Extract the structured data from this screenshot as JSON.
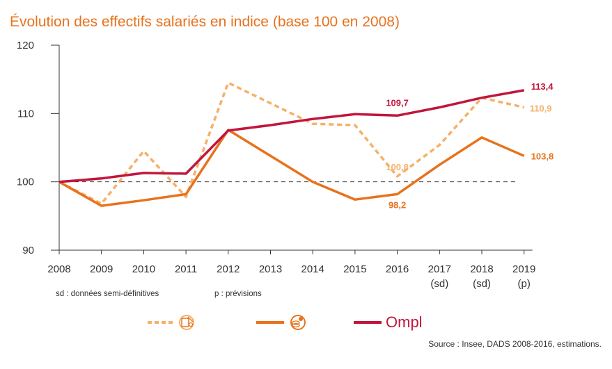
{
  "chart_data": {
    "type": "line",
    "title": "Évolution des effectifs salariés en indice (base 100 en 2008)",
    "categories": [
      "2008",
      "2009",
      "2010",
      "2011",
      "2012",
      "2013",
      "2014",
      "2015",
      "2016",
      "2017",
      "2018",
      "2019"
    ],
    "category_sublabels": [
      "",
      "",
      "",
      "",
      "",
      "",
      "",
      "",
      "",
      "(sd)",
      "(sd)",
      "(p)"
    ],
    "ylim": [
      90,
      120
    ],
    "yticks": [
      90,
      100,
      110,
      120
    ],
    "reference_line": 100,
    "legend_placement": "bottom",
    "series": [
      {
        "id": "dashed",
        "values": [
          100,
          96.8,
          104.5,
          97.8,
          114.5,
          111.5,
          108.5,
          108.3,
          100.8,
          105.4,
          112.3,
          110.9
        ],
        "color": "#f5b06a",
        "style": "dashed",
        "legend_icon": "scissors-tablet-icon",
        "labels": [
          {
            "index": 8,
            "text": "100,8"
          },
          {
            "index": 11,
            "text": "110,9"
          }
        ]
      },
      {
        "id": "solid-orange",
        "values": [
          100,
          96.5,
          97.3,
          98.2,
          107.6,
          103.8,
          100.0,
          97.4,
          98.2,
          102.5,
          106.5,
          103.8
        ],
        "color": "#e8721c",
        "style": "solid",
        "legend_icon": "percent-coins-icon",
        "labels": [
          {
            "index": 8,
            "text": "98,2"
          },
          {
            "index": 11,
            "text": "103,8"
          }
        ]
      },
      {
        "id": "ompl",
        "values": [
          100,
          100.5,
          101.3,
          101.2,
          107.5,
          108.3,
          109.2,
          109.9,
          109.7,
          110.9,
          112.3,
          113.4
        ],
        "color": "#c1163c",
        "style": "solid",
        "legend_logo": "Ompl",
        "labels": [
          {
            "index": 8,
            "text": "109,7"
          },
          {
            "index": 11,
            "text": "113,4"
          }
        ]
      }
    ]
  },
  "notes": {
    "sd": "sd : données semi-définitives",
    "p": "p : prévisions"
  },
  "source": "Source : Insee, DADS 2008-2016, estimations."
}
